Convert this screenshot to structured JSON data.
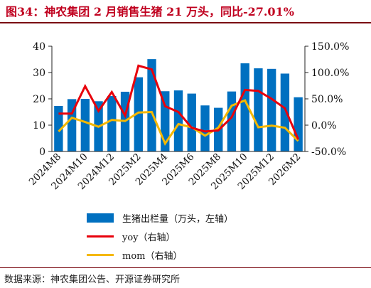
{
  "header": {
    "title": "图34：神农集团 2 月销售生猪 21 万头，同比-27.01%"
  },
  "footer": {
    "source": "数据来源：神农集团公告、开源证券研究所"
  },
  "colors": {
    "bar": "#0070c0",
    "yoy": "#e8000b",
    "mom": "#f5b800",
    "title": "#c0001f"
  },
  "chart_data": {
    "type": "bar",
    "categories": [
      "2024M8",
      "2024M9",
      "2024M10",
      "2024M11",
      "2024M12",
      "2025M1",
      "2025M2",
      "2025M3",
      "2025M4",
      "2025M5",
      "2025M6",
      "2025M7",
      "2025M8",
      "2025M9",
      "2025M10",
      "2025M11",
      "2025M12",
      "2026M1",
      "2026M2"
    ],
    "tick_labels": [
      "2024M8",
      "2024M10",
      "2024M12",
      "2025M2",
      "2025M4",
      "2025M6",
      "2025M8",
      "2025M10",
      "2025M12",
      "2026M2"
    ],
    "y_left": {
      "ylim": [
        0,
        40
      ],
      "ticks": [
        "0",
        "10",
        "20",
        "30",
        "40"
      ]
    },
    "y_right": {
      "ylim": [
        -50,
        150
      ],
      "ticks": [
        "-50.0%",
        "0.0%",
        "50.0%",
        "100.0%",
        "150.0%"
      ]
    },
    "series": [
      {
        "name": "生猪出栏量（万头，左轴）",
        "type": "bar",
        "axis": "left",
        "values": [
          17.3,
          19.9,
          20.0,
          19.1,
          21.1,
          22.7,
          28.2,
          35.1,
          22.9,
          23.2,
          22.0,
          17.5,
          16.6,
          22.8,
          33.5,
          31.6,
          31.4,
          29.6,
          20.6
        ]
      },
      {
        "name": "yoy（右轴）",
        "type": "line",
        "axis": "right",
        "values": [
          22,
          22,
          74,
          27,
          63,
          18,
          113,
          106,
          36,
          25,
          -5,
          -12,
          -10,
          15,
          67,
          65,
          50,
          32,
          -27
        ]
      },
      {
        "name": "mom（右轴）",
        "type": "line",
        "axis": "right",
        "values": [
          -12,
          14,
          6,
          -3,
          10,
          8,
          24,
          25,
          -35,
          2,
          -4,
          -20,
          -5,
          37,
          47,
          -4,
          -1,
          -5,
          -30
        ]
      }
    ],
    "legend_position": "bottom",
    "grid": false
  }
}
